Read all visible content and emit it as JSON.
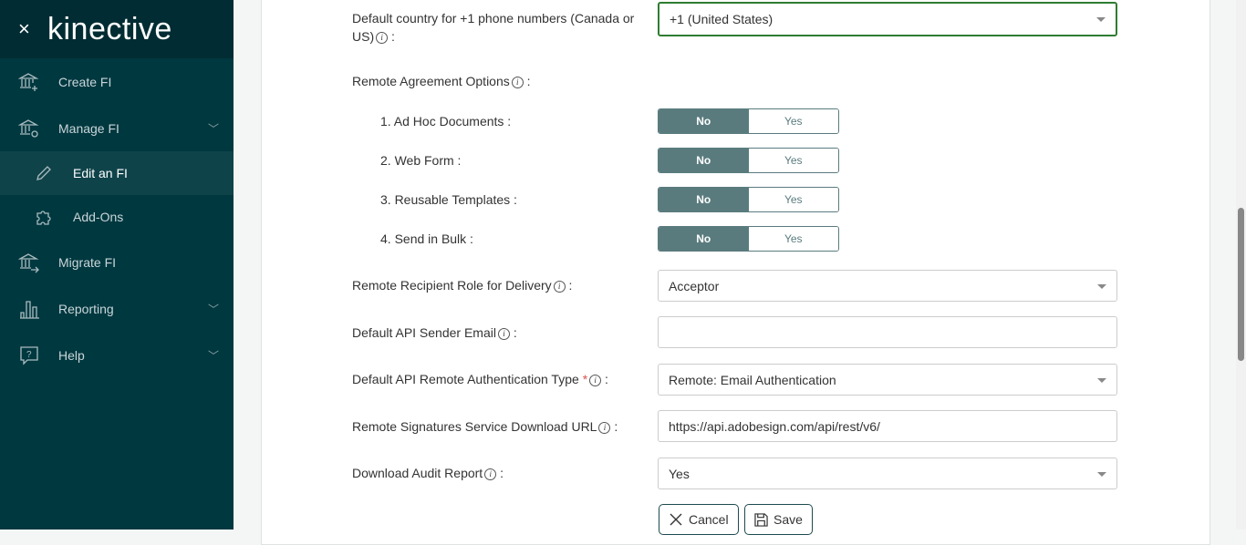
{
  "brand": {
    "close": "×",
    "logo": "kinective"
  },
  "sidebar": {
    "items": [
      {
        "label": "Create FI",
        "icon": "bank-plus-icon"
      },
      {
        "label": "Manage FI",
        "icon": "bank-gear-icon"
      },
      {
        "label": "Edit an FI",
        "icon": "pencil-icon",
        "active": true
      },
      {
        "label": "Add-Ons",
        "icon": "puzzle-icon"
      },
      {
        "label": "Migrate FI",
        "icon": "bank-arrow-icon"
      },
      {
        "label": "Reporting",
        "icon": "bar-chart-icon"
      },
      {
        "label": "Help",
        "icon": "help-bubble-icon"
      }
    ]
  },
  "form": {
    "country": {
      "label": "Default country for +1 phone numbers (Canada or",
      "label2": "US)",
      "value": "+1 (United States)"
    },
    "remote_options": {
      "label": "Remote Agreement Options",
      "items": [
        {
          "label": "1. Ad Hoc Documents :",
          "no": "No",
          "yes": "Yes",
          "selected": "No"
        },
        {
          "label": "2. Web Form :",
          "no": "No",
          "yes": "Yes",
          "selected": "No"
        },
        {
          "label": "3. Reusable Templates :",
          "no": "No",
          "yes": "Yes",
          "selected": "No"
        },
        {
          "label": "4. Send in Bulk :",
          "no": "No",
          "yes": "Yes",
          "selected": "No"
        }
      ]
    },
    "recipient_role": {
      "label": "Remote Recipient Role for Delivery",
      "value": "Acceptor"
    },
    "sender_email": {
      "label": "Default API Sender Email",
      "value": ""
    },
    "auth_type": {
      "label": "Default API Remote Authentication Type",
      "required": "*",
      "value": "Remote: Email Authentication"
    },
    "download_url": {
      "label": "Remote Signatures Service Download URL",
      "value": "https://api.adobesign.com/api/rest/v6/"
    },
    "audit_report": {
      "label": "Download Audit Report",
      "value": "Yes"
    },
    "colon": ":",
    "cancel": "Cancel",
    "save": "Save",
    "info": "i"
  },
  "colors": {
    "sidebar": "#003840",
    "header": "#022c33",
    "toggle": "#5a7b7e",
    "focus": "#2e7d32"
  }
}
